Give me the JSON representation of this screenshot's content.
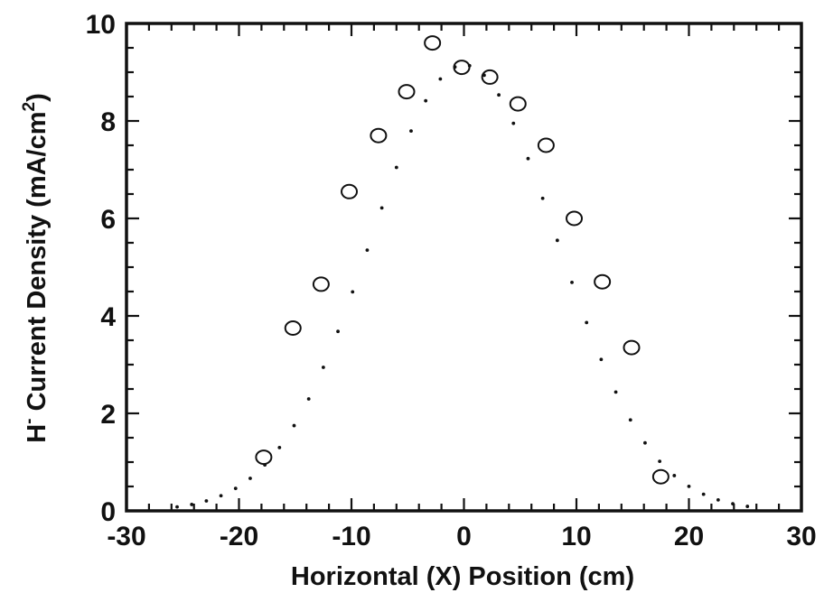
{
  "chart_data": {
    "type": "scatter",
    "title": "",
    "xlabel": "Horizontal  (X)  Position  (cm)",
    "ylabel_main": "H",
    "ylabel_main_sup": "-",
    "ylabel_rest": " Current Density (mA/cm",
    "ylabel_unit_sup": "2",
    "ylabel_close": ")",
    "xlim": [
      -30,
      30
    ],
    "ylim": [
      0,
      10
    ],
    "x_ticks": [
      -30,
      -20,
      -10,
      0,
      10,
      20,
      30
    ],
    "x_tick_labels": [
      "-30",
      "-20",
      "-10",
      "0",
      "10",
      "20",
      "30"
    ],
    "y_ticks": [
      0,
      2,
      4,
      6,
      8,
      10
    ],
    "y_tick_labels": [
      "0",
      "2",
      "4",
      "6",
      "8",
      "10"
    ],
    "x_minor_step": 2,
    "y_minor_step": 0.5,
    "grid": false,
    "series": [
      {
        "style": "open-circle",
        "x": [
          -17.8,
          -15.2,
          -12.7,
          -10.2,
          -7.6,
          -5.1,
          -2.8,
          -0.2,
          2.3,
          4.8,
          7.3,
          9.8,
          12.3,
          14.9,
          17.5
        ],
        "y": [
          1.1,
          3.75,
          4.65,
          6.55,
          7.7,
          8.6,
          9.6,
          9.1,
          8.9,
          8.35,
          7.5,
          6.0,
          4.7,
          3.35,
          0.7
        ]
      },
      {
        "style": "dotted-fit",
        "function": "gaussian",
        "amplitude": 9.15,
        "center": 0,
        "sigma": 8.3,
        "x_range": [
          -25.5,
          25.5
        ]
      }
    ],
    "colors": {
      "ink": "#111111",
      "background": "#ffffff"
    }
  }
}
